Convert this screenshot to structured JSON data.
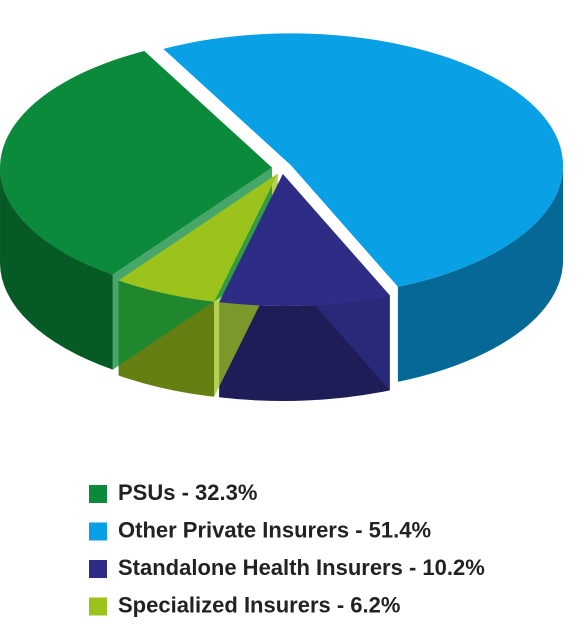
{
  "chart_data": {
    "type": "pie",
    "categories": [
      "PSUs - 32.3%",
      "Other Private Insurers - 51.4%",
      "Standalone Health Insurers - 10.2%",
      "Specialized Insurers - 6.2%"
    ],
    "values": [
      32.3,
      51.4,
      10.2,
      6.2
    ],
    "colors": [
      "#0a8a3a",
      "#0aa0e6",
      "#2e2d86",
      "#9bc31c"
    ],
    "legend": "bottom"
  }
}
